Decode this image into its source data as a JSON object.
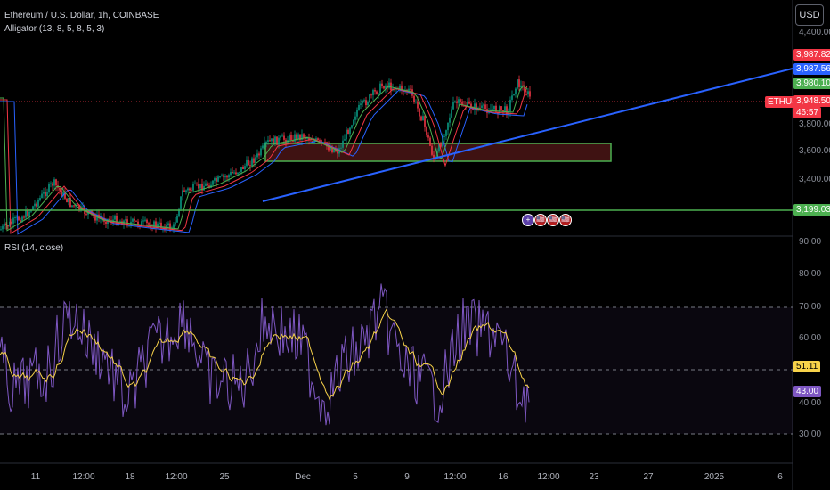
{
  "header": {
    "symbol_title": "Ethereum / U.S. Dollar, 1h, COINBASE",
    "indicator_alligator": "Alligator (13, 8, 5, 8, 5, 3)",
    "currency_button": "USD"
  },
  "price_scale": {
    "ticks": [
      "4,400.00",
      "3,800.00",
      "3,600.00",
      "3,400.00"
    ],
    "tags": {
      "high": "3,987.82",
      "blue": "3,987.56",
      "green": "3,980.10",
      "symbol": "ETHUSD",
      "last": "3,948.50",
      "countdown": "46:57",
      "support": "3,199.03"
    }
  },
  "rsi": {
    "title": "RSI (14, close)",
    "ticks": [
      "90.00",
      "80.00",
      "70.00",
      "60.00",
      "40.00",
      "30.00"
    ],
    "value_ma": "51.11",
    "value_rsi": "43.00"
  },
  "time_axis": [
    "11",
    "12:00",
    "18",
    "12:00",
    "25",
    "Dec",
    "5",
    "9",
    "12:00",
    "16",
    "12:00",
    "23",
    "27",
    "2025",
    "6"
  ],
  "events": [
    "+",
    "🇺🇸",
    "🇺🇸",
    "🇺🇸"
  ],
  "colors": {
    "background": "#000000",
    "up_candle": "#089981",
    "down_candle": "#f23645",
    "trendline": "#2962ff",
    "support_line": "#4caf50",
    "rsi_line": "#7e57c2",
    "rsi_ma": "#f7d24a"
  }
}
